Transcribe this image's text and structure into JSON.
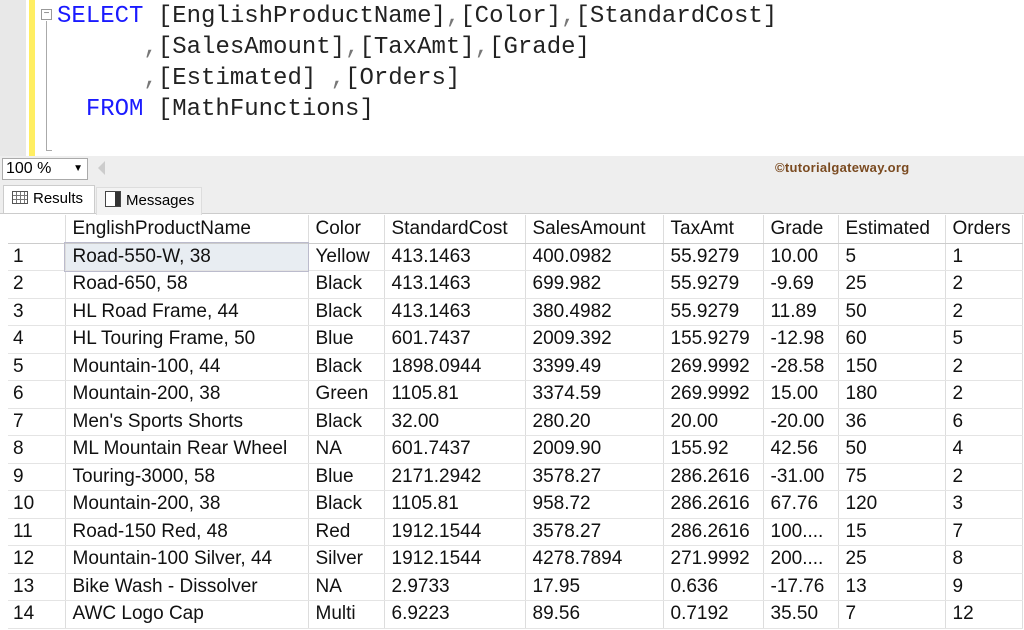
{
  "editor": {
    "lines": [
      [
        {
          "t": "SELECT",
          "c": "kw"
        },
        {
          "t": " [EnglishProductName]"
        },
        {
          "t": ",",
          "c": "pn"
        },
        {
          "t": "[Color]"
        },
        {
          "t": ",",
          "c": "pn"
        },
        {
          "t": "[StandardCost]"
        }
      ],
      [
        {
          "t": "      "
        },
        {
          "t": ",",
          "c": "pn"
        },
        {
          "t": "[SalesAmount]"
        },
        {
          "t": ",",
          "c": "pn"
        },
        {
          "t": "[TaxAmt]"
        },
        {
          "t": ",",
          "c": "pn"
        },
        {
          "t": "[Grade]"
        }
      ],
      [
        {
          "t": "      "
        },
        {
          "t": ",",
          "c": "pn"
        },
        {
          "t": "[Estimated] "
        },
        {
          "t": ",",
          "c": "pn"
        },
        {
          "t": "[Orders]"
        }
      ],
      [
        {
          "t": "  "
        },
        {
          "t": "FROM",
          "c": "kw"
        },
        {
          "t": " [MathFunctions]"
        }
      ]
    ]
  },
  "toolbar": {
    "zoom": "100 %",
    "watermark": "©tutorialgateway.org"
  },
  "tabs": {
    "results": "Results",
    "messages": "Messages"
  },
  "grid": {
    "columns": [
      "",
      "EnglishProductName",
      "Color",
      "StandardCost",
      "SalesAmount",
      "TaxAmt",
      "Grade",
      "Estimated",
      "Orders"
    ],
    "rows": [
      [
        "1",
        "Road-550-W, 38",
        "Yellow",
        "413.1463",
        "400.0982",
        "55.9279",
        "10.00",
        "5",
        "1"
      ],
      [
        "2",
        "Road-650, 58",
        "Black",
        "413.1463",
        "699.982",
        "55.9279",
        "-9.69",
        "25",
        "2"
      ],
      [
        "3",
        "HL Road Frame, 44",
        "Black",
        "413.1463",
        "380.4982",
        "55.9279",
        "11.89",
        "50",
        "2"
      ],
      [
        "4",
        "HL Touring Frame, 50",
        "Blue",
        "601.7437",
        "2009.392",
        "155.9279",
        "-12.98",
        "60",
        "5"
      ],
      [
        "5",
        "Mountain-100, 44",
        "Black",
        "1898.0944",
        "3399.49",
        "269.9992",
        "-28.58",
        "150",
        "2"
      ],
      [
        "6",
        "Mountain-200, 38",
        "Green",
        "1105.81",
        "3374.59",
        "269.9992",
        "15.00",
        "180",
        "2"
      ],
      [
        "7",
        "Men's Sports Shorts",
        "Black",
        "32.00",
        "280.20",
        "20.00",
        "-20.00",
        "36",
        "6"
      ],
      [
        "8",
        "ML Mountain Rear Wheel",
        "NA",
        "601.7437",
        "2009.90",
        "155.92",
        "42.56",
        "50",
        "4"
      ],
      [
        "9",
        "Touring-3000, 58",
        "Blue",
        "2171.2942",
        "3578.27",
        "286.2616",
        "-31.00",
        "75",
        "2"
      ],
      [
        "10",
        "Mountain-200, 38",
        "Black",
        "1105.81",
        "958.72",
        "286.2616",
        "67.76",
        "120",
        "3"
      ],
      [
        "11",
        "Road-150 Red, 48",
        "Red",
        "1912.1544",
        "3578.27",
        "286.2616",
        "100....",
        "15",
        "7"
      ],
      [
        "12",
        "Mountain-100 Silver, 44",
        "Silver",
        "1912.1544",
        "4278.7894",
        "271.9992",
        "200....",
        "25",
        "8"
      ],
      [
        "13",
        "Bike Wash - Dissolver",
        "NA",
        "2.9733",
        "17.95",
        "0.636",
        "-17.76",
        "13",
        "9"
      ],
      [
        "14",
        "AWC Logo Cap",
        "Multi",
        "6.9223",
        "89.56",
        "0.7192",
        "35.50",
        "7",
        "12"
      ]
    ]
  }
}
